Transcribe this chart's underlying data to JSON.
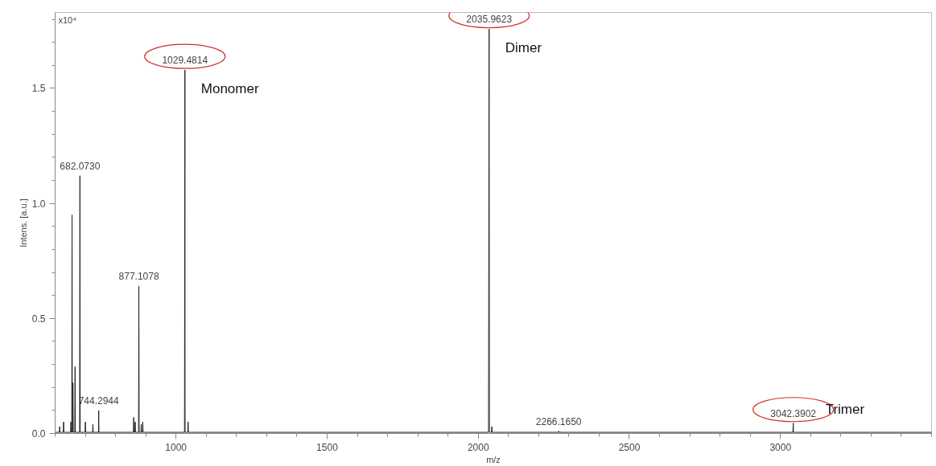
{
  "chart_data": {
    "type": "line",
    "ylabel": "Intens. [a.u.]",
    "xlabel": "m/z",
    "xlim": [
      600,
      3500
    ],
    "ylim": [
      0,
      1.83
    ],
    "xticks": [
      {
        "value": 600,
        "label": null
      },
      {
        "value": 700,
        "label": null
      },
      {
        "value": 800,
        "label": null
      },
      {
        "value": 900,
        "label": null
      },
      1000,
      {
        "value": 1100,
        "label": null
      },
      {
        "value": 1200,
        "label": null
      },
      {
        "value": 1300,
        "label": null
      },
      {
        "value": 1400,
        "label": null
      },
      1500,
      {
        "value": 1600,
        "label": null
      },
      {
        "value": 1700,
        "label": null
      },
      {
        "value": 1800,
        "label": null
      },
      {
        "value": 1900,
        "label": null
      },
      2000,
      {
        "value": 2100,
        "label": null
      },
      {
        "value": 2200,
        "label": null
      },
      {
        "value": 2300,
        "label": null
      },
      {
        "value": 2400,
        "label": null
      },
      2500,
      {
        "value": 2600,
        "label": null
      },
      {
        "value": 2700,
        "label": null
      },
      {
        "value": 2800,
        "label": null
      },
      {
        "value": 2900,
        "label": null
      },
      3000,
      {
        "value": 3100,
        "label": null
      },
      {
        "value": 3200,
        "label": null
      },
      {
        "value": 3300,
        "label": null
      },
      {
        "value": 3400,
        "label": null
      },
      {
        "value": 3500,
        "label": null
      }
    ],
    "yticks": [
      {
        "value": 0,
        "label": "0.0"
      },
      {
        "value": 0.1,
        "label": null
      },
      {
        "value": 0.2,
        "label": null
      },
      {
        "value": 0.3,
        "label": null
      },
      {
        "value": 0.4,
        "label": null
      },
      {
        "value": 0.5,
        "label": "0.5"
      },
      {
        "value": 0.6,
        "label": null
      },
      {
        "value": 0.7,
        "label": null
      },
      {
        "value": 0.8,
        "label": null
      },
      {
        "value": 0.9,
        "label": null
      },
      {
        "value": 1.0,
        "label": "1.0"
      },
      {
        "value": 1.1,
        "label": null
      },
      {
        "value": 1.2,
        "label": null
      },
      {
        "value": 1.3,
        "label": null
      },
      {
        "value": 1.4,
        "label": null
      },
      {
        "value": 1.5,
        "label": "1.5"
      },
      {
        "value": 1.6,
        "label": null
      },
      {
        "value": 1.7,
        "label": null
      },
      {
        "value": 1.8,
        "label": null
      }
    ],
    "grid": false,
    "series": [
      {
        "color": "#222222",
        "x": [
          600,
          614,
          615,
          616,
          627,
          628,
          629,
          651,
          652,
          653,
          655,
          656,
          657,
          658,
          659,
          660,
          665,
          666,
          667,
          681,
          682.073,
          683,
          699,
          700,
          701,
          724,
          725,
          726,
          743.5,
          744.294,
          745,
          859,
          860,
          861,
          864,
          865,
          866,
          876,
          877.108,
          878,
          884,
          885,
          886,
          889,
          890,
          891,
          1028,
          1029.481,
          1030,
          1039,
          1040,
          1041,
          1500,
          2034,
          2035.962,
          2037,
          2044,
          2045,
          2046,
          2265,
          2266.165,
          2267,
          3041,
          3042.39,
          3043,
          3500
        ],
        "values": [
          0.005,
          0.005,
          0.03,
          0.005,
          0.005,
          0.05,
          0.005,
          0.005,
          0.05,
          0.005,
          0.005,
          0.95,
          0.005,
          0.005,
          0.22,
          0.005,
          0.005,
          0.29,
          0.005,
          0.005,
          1.12,
          0.005,
          0.005,
          0.05,
          0.005,
          0.005,
          0.04,
          0.005,
          0.005,
          0.1,
          0.005,
          0.005,
          0.07,
          0.005,
          0.005,
          0.05,
          0.005,
          0.005,
          0.64,
          0.005,
          0.005,
          0.04,
          0.005,
          0.005,
          0.05,
          0.005,
          0.005,
          1.58,
          0.005,
          0.005,
          0.05,
          0.005,
          0.005,
          0.005,
          1.757,
          0.005,
          0.005,
          0.03,
          0.005,
          0.005,
          0.01,
          0.005,
          0.005,
          0.045,
          0.005,
          0.005
        ]
      }
    ],
    "annotations": [
      "x10⁴",
      {
        "text": "682.0730",
        "x": 682.073,
        "y": 1.12
      },
      {
        "text": "744.2944",
        "x": 744.294,
        "y": 0.1
      },
      {
        "text": "877.1078",
        "x": 877.108,
        "y": 0.64
      },
      {
        "text": "1029.4814",
        "x": 1029.481,
        "y": 1.58
      },
      {
        "text": "2035.9623",
        "x": 2035.962,
        "y": 1.757
      },
      {
        "text": "2266.1650",
        "x": 2266.165,
        "y": 0.01
      },
      {
        "text": "3042.3902",
        "x": 3042.39,
        "y": 0.045
      },
      {
        "text": "Monomer",
        "x": 1029.481,
        "y": 1.58
      },
      {
        "text": "Dimer",
        "x": 2035.962,
        "y": 1.757
      },
      {
        "text": "Trimer",
        "x": 3042.39,
        "y": 0.045
      }
    ]
  }
}
